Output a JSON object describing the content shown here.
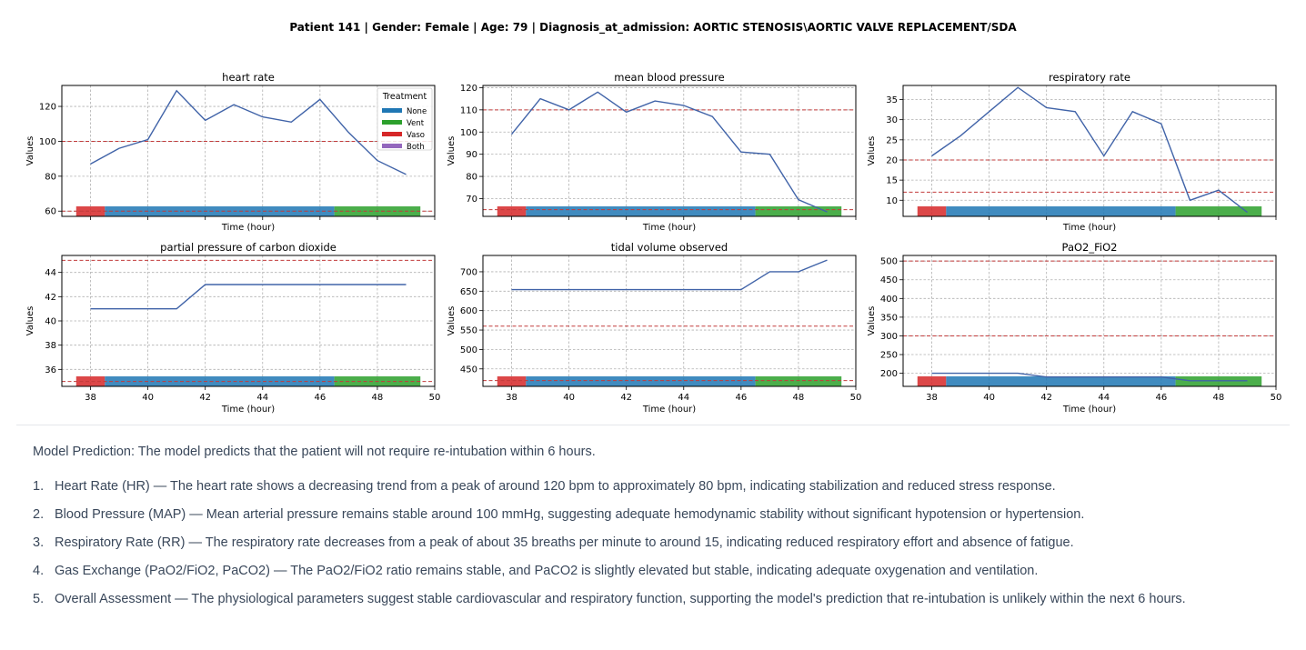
{
  "header": {
    "title": "Patient 141 | Gender: Female | Age: 79 | Diagnosis_at_admission: AORTIC STENOSIS\\AORTIC VALVE REPLACEMENT/SDA"
  },
  "colors": {
    "line": "#4063a8",
    "threshold": "#c23b3b",
    "grid": "#b0b0b0",
    "treatment": {
      "None": "#1f77b4",
      "Vent": "#2ca02c",
      "Vaso": "#d62728",
      "Both": "#9467bd"
    }
  },
  "legend": {
    "title": "Treatment",
    "items": [
      "None",
      "Vent",
      "Vaso",
      "Both"
    ],
    "placement": "top-right of heart rate panel"
  },
  "treatment_timeline": [
    {
      "treatment": "Vaso",
      "start": 37.5,
      "end": 38.5
    },
    {
      "treatment": "None",
      "start": 38.5,
      "end": 46.5
    },
    {
      "treatment": "Vent",
      "start": 46.5,
      "end": 49.5
    }
  ],
  "chart_data": [
    {
      "type": "line",
      "title": "heart rate",
      "xlabel": "Time (hour)",
      "ylabel": "Values",
      "x": [
        38,
        39,
        40,
        41,
        42,
        43,
        44,
        45,
        46,
        47,
        48,
        49
      ],
      "y": [
        87,
        96,
        101,
        129,
        112,
        121,
        114,
        111,
        124,
        105,
        89,
        81
      ],
      "thresholds": [
        100,
        60
      ],
      "xlim": [
        37,
        50
      ],
      "ylim": [
        57,
        132
      ],
      "xticks": [
        38,
        40,
        42,
        44,
        46,
        48,
        50
      ],
      "yticks": [
        60,
        80,
        100,
        120
      ],
      "show_xtick_labels": false,
      "grid": true,
      "legend": true
    },
    {
      "type": "line",
      "title": "mean blood pressure",
      "xlabel": "Time (hour)",
      "ylabel": "Values",
      "x": [
        38,
        39,
        40,
        41,
        42,
        43,
        44,
        45,
        46,
        47,
        48,
        49
      ],
      "y": [
        99,
        115,
        110,
        118,
        109,
        114,
        112,
        107,
        91,
        90,
        69.5,
        64
      ],
      "thresholds": [
        110,
        65
      ],
      "xlim": [
        37,
        50
      ],
      "ylim": [
        62,
        121
      ],
      "xticks": [
        38,
        40,
        42,
        44,
        46,
        48,
        50
      ],
      "yticks": [
        70,
        80,
        90,
        100,
        110,
        120
      ],
      "show_xtick_labels": false,
      "grid": true,
      "legend": false
    },
    {
      "type": "line",
      "title": "respiratory rate",
      "xlabel": "Time (hour)",
      "ylabel": "Values",
      "x": [
        38,
        39,
        40,
        41,
        42,
        43,
        44,
        45,
        46,
        47,
        48,
        49
      ],
      "y": [
        21,
        26,
        32,
        38,
        33,
        32,
        21,
        32,
        29,
        10,
        12.5,
        7
      ],
      "thresholds": [
        20,
        12
      ],
      "xlim": [
        37,
        50
      ],
      "ylim": [
        6,
        38.5
      ],
      "xticks": [
        38,
        40,
        42,
        44,
        46,
        48,
        50
      ],
      "yticks": [
        10,
        15,
        20,
        25,
        30,
        35
      ],
      "show_xtick_labels": false,
      "grid": true,
      "legend": false
    },
    {
      "type": "line",
      "title": "partial pressure of carbon dioxide",
      "xlabel": "Time (hour)",
      "ylabel": "Values",
      "x": [
        38,
        39,
        40,
        41,
        42,
        43,
        44,
        45,
        46,
        47,
        48,
        49
      ],
      "y": [
        41,
        41,
        41,
        41,
        43,
        43,
        43,
        43,
        43,
        43,
        43,
        43
      ],
      "thresholds": [
        45,
        35
      ],
      "xlim": [
        37,
        50
      ],
      "ylim": [
        34.6,
        45.4
      ],
      "xticks": [
        38,
        40,
        42,
        44,
        46,
        48,
        50
      ],
      "yticks": [
        36,
        38,
        40,
        42,
        44
      ],
      "show_xtick_labels": true,
      "grid": true,
      "legend": false
    },
    {
      "type": "line",
      "title": "tidal volume observed",
      "xlabel": "Time (hour)",
      "ylabel": "Values",
      "x": [
        38,
        39,
        40,
        41,
        42,
        43,
        44,
        45,
        46,
        47,
        48,
        49
      ],
      "y": [
        654,
        654,
        654,
        654,
        654,
        654,
        654,
        654,
        654,
        700,
        700,
        730
      ],
      "thresholds": [
        560,
        420
      ],
      "xlim": [
        37,
        50
      ],
      "ylim": [
        405,
        742
      ],
      "xticks": [
        38,
        40,
        42,
        44,
        46,
        48,
        50
      ],
      "yticks": [
        450,
        500,
        550,
        600,
        650,
        700
      ],
      "show_xtick_labels": true,
      "grid": true,
      "legend": false
    },
    {
      "type": "line",
      "title": "PaO2_FiO2",
      "xlabel": "Time (hour)",
      "ylabel": "Values",
      "x": [
        38,
        39,
        40,
        41,
        42,
        43,
        44,
        45,
        46,
        47,
        48,
        49
      ],
      "y": [
        200,
        200,
        200,
        200,
        190,
        190,
        190,
        190,
        190,
        180,
        180,
        180
      ],
      "thresholds": [
        500,
        300
      ],
      "xlim": [
        37,
        50
      ],
      "ylim": [
        165,
        515
      ],
      "xticks": [
        38,
        40,
        42,
        44,
        46,
        48,
        50
      ],
      "yticks": [
        200,
        250,
        300,
        350,
        400,
        450,
        500
      ],
      "show_xtick_labels": true,
      "grid": true,
      "legend": false
    }
  ],
  "prediction": "Model Prediction: The model predicts that the patient will not require re-intubation within 6 hours.",
  "findings": [
    {
      "num": "1.",
      "text": "Heart Rate (HR) — The heart rate shows a decreasing trend from a peak of around 120 bpm to approximately 80 bpm, indicating stabilization and reduced stress response."
    },
    {
      "num": "2.",
      "text": "Blood Pressure (MAP) — Mean arterial pressure remains stable around 100 mmHg, suggesting adequate hemodynamic stability without significant hypotension or hypertension."
    },
    {
      "num": "3.",
      "text": "Respiratory Rate (RR) — The respiratory rate decreases from a peak of about 35 breaths per minute to around 15, indicating reduced respiratory effort and absence of fatigue."
    },
    {
      "num": "4.",
      "text": "Gas Exchange (PaO2/FiO2, PaCO2) — The PaO2/FiO2 ratio remains stable, and PaCO2 is slightly elevated but stable, indicating adequate oxygenation and ventilation."
    },
    {
      "num": "5.",
      "text": "Overall Assessment — The physiological parameters suggest stable cardiovascular and respiratory function, supporting the model's prediction that re-intubation is unlikely within the next 6 hours."
    }
  ]
}
